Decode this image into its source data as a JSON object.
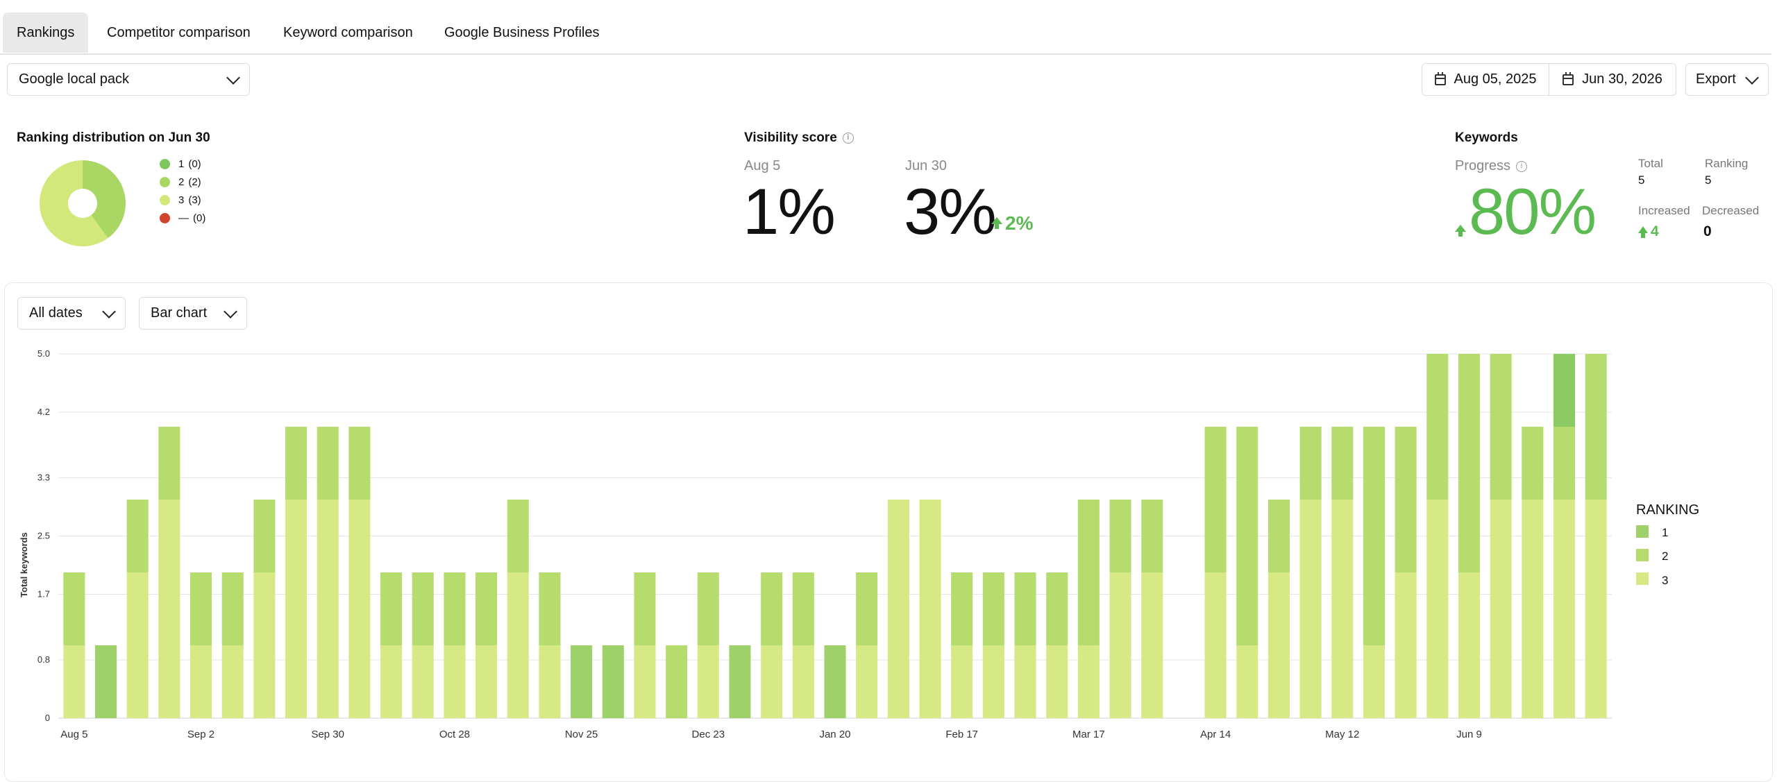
{
  "tabs": [
    {
      "label": "Rankings",
      "active": true
    },
    {
      "label": "Competitor comparison"
    },
    {
      "label": "Keyword comparison"
    },
    {
      "label": "Google Business Profiles"
    }
  ],
  "source_select": {
    "value": "Google local pack"
  },
  "date_range": {
    "start": "Aug 05, 2025",
    "end": "Jun 30, 2026"
  },
  "export_label": "Export",
  "distribution": {
    "title": "Ranking distribution on Jun 30",
    "items": [
      {
        "label": "1",
        "count": "(0)",
        "value": 0,
        "color": "#7cc85a"
      },
      {
        "label": "2",
        "count": "(2)",
        "value": 2,
        "color": "#aad663"
      },
      {
        "label": "3",
        "count": "(3)",
        "value": 3,
        "color": "#d2e87a"
      },
      {
        "label": "—",
        "count": "(0)",
        "value": 0,
        "color": "#d0442d"
      }
    ]
  },
  "visibility": {
    "title": "Visibility score",
    "start_label": "Aug 5",
    "start_value": "1%",
    "end_label": "Jun 30",
    "end_value": "3%",
    "change": "2%"
  },
  "keywords": {
    "title": "Keywords",
    "progress_label": "Progress",
    "progress_value": "80%",
    "total_label": "Total",
    "total_value": "5",
    "ranking_label": "Ranking",
    "ranking_value": "5",
    "increased_label": "Increased",
    "increased_value": "4",
    "decreased_label": "Decreased",
    "decreased_value": "0"
  },
  "chart_controls": {
    "range": "All dates",
    "type": "Bar chart"
  },
  "colors": {
    "rank1": "#9fd16a",
    "rank2": "#b6dc6e",
    "rank3": "#d6e985",
    "rank1_dark": "#8ccb63"
  },
  "chart_data": {
    "type": "bar",
    "stacked": true,
    "ylabel": "Total keywords",
    "ylim": [
      0,
      5
    ],
    "yticks": [
      "0",
      "0.8",
      "1.7",
      "2.5",
      "3.3",
      "4.2",
      "5.0"
    ],
    "xtick_labels": [
      "Aug 5",
      "Sep 2",
      "Sep 30",
      "Oct 28",
      "Nov 25",
      "Dec 23",
      "Jan 20",
      "Feb 17",
      "Mar 17",
      "Apr 14",
      "May 12",
      "Jun 9"
    ],
    "legend_title": "RANKING",
    "series": [
      {
        "name": "1",
        "values": [
          0,
          1,
          0,
          0,
          0,
          0,
          0,
          0,
          0,
          0,
          0,
          0,
          0,
          0,
          0,
          0,
          1,
          1,
          0,
          0,
          0,
          1,
          0,
          0,
          1,
          0,
          0,
          0,
          0,
          0,
          0,
          0,
          0,
          0,
          0,
          0,
          0,
          0,
          0,
          0,
          0,
          0,
          0,
          0,
          0,
          0,
          0,
          0,
          0
        ]
      },
      {
        "name": "2",
        "values": [
          1,
          0,
          1,
          1,
          1,
          1,
          1,
          1,
          1,
          1,
          1,
          1,
          1,
          1,
          1,
          1,
          0,
          0,
          1,
          1,
          1,
          0,
          1,
          1,
          0,
          1,
          0,
          0,
          1,
          1,
          1,
          1,
          2,
          1,
          1,
          0,
          2,
          3,
          1,
          1,
          1,
          3,
          2,
          2,
          3,
          2,
          1,
          1,
          2
        ]
      },
      {
        "name": "3",
        "values": [
          1,
          0,
          2,
          3,
          1,
          1,
          2,
          3,
          3,
          3,
          1,
          1,
          1,
          1,
          2,
          1,
          0,
          0,
          1,
          0,
          1,
          0,
          1,
          1,
          0,
          1,
          3,
          3,
          1,
          1,
          1,
          1,
          1,
          2,
          2,
          0,
          2,
          1,
          2,
          3,
          3,
          1,
          2,
          3,
          2,
          3,
          3,
          3,
          3
        ]
      }
    ],
    "extra_top": [
      0,
      0,
      0,
      0,
      0,
      0,
      0,
      0,
      0,
      0,
      0,
      0,
      0,
      0,
      0,
      0,
      0,
      0,
      0,
      0,
      0,
      0,
      0,
      0,
      0,
      0,
      0,
      0,
      0,
      0,
      0,
      0,
      0,
      0,
      0,
      0,
      0,
      0,
      0,
      0,
      0,
      0,
      0,
      0,
      0,
      0,
      0,
      1,
      0
    ]
  }
}
